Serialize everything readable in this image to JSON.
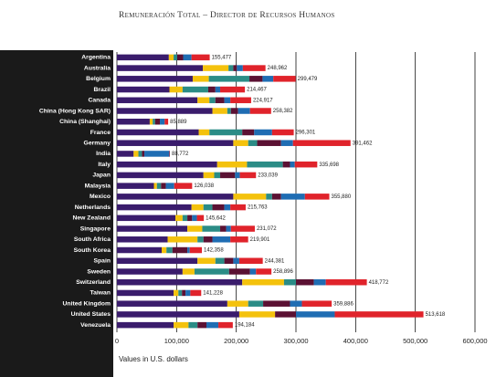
{
  "chart_data": {
    "type": "stacked-bar-horizontal",
    "title": "Remuneración Total – Director de Recursos Humanos",
    "x_label": "Values in U.S. dollars",
    "categories": [
      "Argentina",
      "Australia",
      "Belgium",
      "Brazil",
      "Canada",
      "China (Hong Kong SAR)",
      "China (Shanghai)",
      "France",
      "Germany",
      "India",
      "Italy",
      "Japan",
      "Malaysia",
      "Mexico",
      "Netherlands",
      "New Zealand",
      "Singapore",
      "South Africa",
      "South Korea",
      "Spain",
      "Sweden",
      "Switzerland",
      "Taiwan",
      "United Kingdom",
      "United States",
      "Venezuela"
    ],
    "series": [
      {
        "color": "#3a1c6c",
        "values": [
          87000,
          144000,
          127000,
          88000,
          135000,
          160000,
          55000,
          137000,
          195000,
          28000,
          168000,
          145000,
          62000,
          195000,
          125000,
          98000,
          118000,
          85000,
          75000,
          135000,
          110000,
          210000,
          95000,
          185000,
          205000,
          95000
        ]
      },
      {
        "color": "#f4c20d",
        "values": [
          8000,
          43000,
          27000,
          22000,
          20000,
          25000,
          5000,
          18000,
          25000,
          8000,
          50000,
          18000,
          5000,
          55000,
          20000,
          12000,
          25000,
          50000,
          8000,
          30000,
          20000,
          70000,
          8000,
          35000,
          60000,
          25000
        ]
      },
      {
        "color": "#2b8c86",
        "values": [
          6000,
          8000,
          68000,
          43000,
          10000,
          6000,
          4000,
          55000,
          15000,
          6000,
          60000,
          10000,
          7000,
          10000,
          15000,
          8000,
          30000,
          10000,
          10000,
          15000,
          58000,
          20000,
          6000,
          25000,
          0,
          15000
        ]
      },
      {
        "color": "#5b1133",
        "values": [
          10000,
          6000,
          22000,
          12000,
          15000,
          12000,
          8000,
          20000,
          40000,
          4000,
          12000,
          25000,
          8000,
          15000,
          20000,
          8000,
          10000,
          15000,
          25000,
          15000,
          35000,
          30000,
          6000,
          45000,
          35000,
          15000
        ]
      },
      {
        "color": "#1f6db3",
        "values": [
          14000,
          10000,
          18000,
          8000,
          10000,
          20000,
          8000,
          30000,
          20000,
          42000,
          8000,
          8000,
          14000,
          40000,
          10000,
          8000,
          8000,
          30000,
          4000,
          10000,
          10000,
          20000,
          8000,
          20000,
          65000,
          20000
        ]
      },
      {
        "color": "#e0232b",
        "values": [
          30477,
          37962,
          37479,
          41467,
          34917,
          35382,
          5889,
          36301,
          96462,
          772,
          37698,
          27039,
          30038,
          40880,
          25763,
          11642,
          40072,
          29901,
          20358,
          39381,
          25896,
          68772,
          18228,
          49886,
          148618,
          24184
        ]
      }
    ],
    "totals": {
      "values": [
        155477,
        248962,
        299479,
        214467,
        224917,
        258382,
        85889,
        296301,
        391462,
        88772,
        335698,
        233039,
        126038,
        355880,
        215763,
        145642,
        231072,
        219901,
        142358,
        244381,
        258896,
        418772,
        141228,
        359886,
        513618,
        194184
      ],
      "value_labels": [
        "155,477",
        "248,962",
        "299,479",
        "214,467",
        "224,917",
        "258,382",
        "85,889",
        "296,301",
        "391,462",
        "88,772",
        "335,698",
        "233,039",
        "126,038",
        "355,880",
        "215,763",
        "145,642",
        "231,072",
        "219,901",
        "142,358",
        "244,381",
        "258,896",
        "418,772",
        "141,228",
        "359,886",
        "513,618",
        "194,184"
      ]
    },
    "xlim": [
      0,
      600000
    ],
    "xticks": [
      0,
      {
        "value": 100000,
        "label": "100,000"
      },
      {
        "value": 200000,
        "label": "200,000"
      },
      {
        "value": 300000,
        "label": "300,000"
      },
      {
        "value": 400000,
        "label": "400,000"
      },
      {
        "value": 500000,
        "label": "500,000"
      },
      {
        "value": 600000,
        "label": "600,000"
      }
    ],
    "grid": true
  }
}
